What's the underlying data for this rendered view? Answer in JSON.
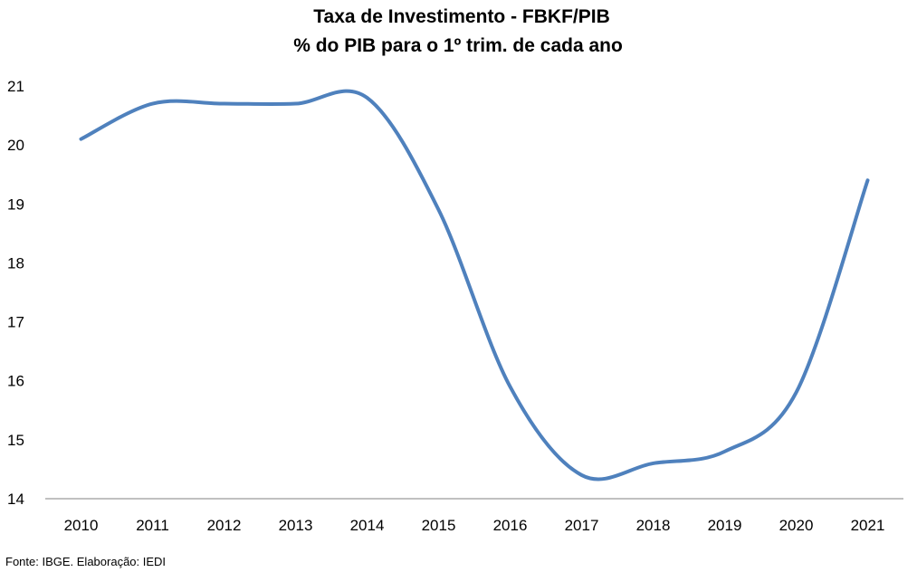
{
  "chart_data": {
    "type": "line",
    "title": "Taxa de Investimento - FBKF/PIB",
    "subtitle": "% do PIB para o 1º trim. de cada ano",
    "xlabel": "",
    "ylabel": "",
    "categories": [
      "2010",
      "2011",
      "2012",
      "2013",
      "2014",
      "2015",
      "2016",
      "2017",
      "2018",
      "2019",
      "2020",
      "2021"
    ],
    "series": [
      {
        "values": [
          20.1,
          20.7,
          20.7,
          20.7,
          20.8,
          18.9,
          15.9,
          14.4,
          14.6,
          14.8,
          15.8,
          19.4
        ]
      }
    ],
    "ylim": [
      14,
      21
    ],
    "yticks": [
      "14",
      "15",
      "16",
      "17",
      "18",
      "19",
      "20",
      "21"
    ],
    "grid": false,
    "legend": "none",
    "line_color": "#4f81bd",
    "source": "Fonte: IBGE. Elaboração: IEDI"
  }
}
